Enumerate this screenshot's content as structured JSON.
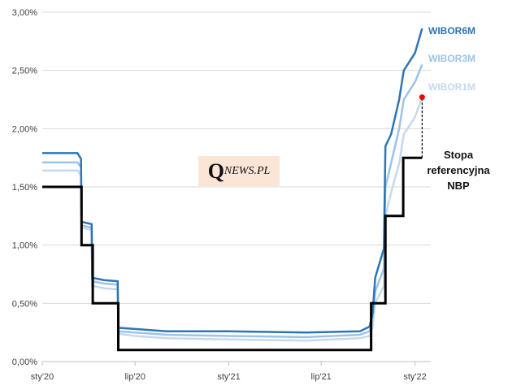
{
  "chart_data": {
    "type": "line",
    "title": "",
    "xlabel": "",
    "ylabel": "",
    "ylim": [
      0,
      3.0
    ],
    "yticks": [
      "0,00%",
      "0,50%",
      "1,00%",
      "1,50%",
      "2,00%",
      "2,50%",
      "3,00%"
    ],
    "xlim": [
      "2020-01-01",
      "2022-02-01"
    ],
    "xticks": [
      {
        "date": "2020-01-01",
        "label": "sty'20"
      },
      {
        "date": "2020-07-01",
        "label": "lip'20"
      },
      {
        "date": "2021-01-01",
        "label": "sty'21"
      },
      {
        "date": "2021-07-01",
        "label": "lip'21"
      },
      {
        "date": "2022-01-01",
        "label": "sty'22"
      }
    ],
    "grid": "horizontal",
    "legend": "inline-right",
    "series": [
      {
        "name": "WIBOR6M",
        "color": "#2e75b6",
        "points": [
          [
            "2020-01-01",
            1.79
          ],
          [
            "2020-03-10",
            1.79
          ],
          [
            "2020-03-17",
            1.74
          ],
          [
            "2020-03-18",
            1.2
          ],
          [
            "2020-04-07",
            1.18
          ],
          [
            "2020-04-08",
            0.72
          ],
          [
            "2020-05-01",
            0.7
          ],
          [
            "2020-05-28",
            0.69
          ],
          [
            "2020-05-29",
            0.29
          ],
          [
            "2020-07-01",
            0.28
          ],
          [
            "2020-09-01",
            0.26
          ],
          [
            "2021-01-01",
            0.26
          ],
          [
            "2021-06-01",
            0.25
          ],
          [
            "2021-09-15",
            0.26
          ],
          [
            "2021-10-04",
            0.3
          ],
          [
            "2021-10-10",
            0.42
          ],
          [
            "2021-10-15",
            0.72
          ],
          [
            "2021-11-01",
            0.97
          ],
          [
            "2021-11-04",
            1.85
          ],
          [
            "2021-11-15",
            1.95
          ],
          [
            "2021-12-01",
            2.25
          ],
          [
            "2021-12-10",
            2.5
          ],
          [
            "2022-01-01",
            2.65
          ],
          [
            "2022-01-15",
            2.86
          ]
        ]
      },
      {
        "name": "WIBOR3M",
        "color": "#9dc3e6",
        "points": [
          [
            "2020-01-01",
            1.71
          ],
          [
            "2020-03-10",
            1.71
          ],
          [
            "2020-03-17",
            1.67
          ],
          [
            "2020-03-18",
            1.17
          ],
          [
            "2020-04-07",
            1.15
          ],
          [
            "2020-04-08",
            0.69
          ],
          [
            "2020-05-01",
            0.67
          ],
          [
            "2020-05-28",
            0.66
          ],
          [
            "2020-05-29",
            0.26
          ],
          [
            "2020-07-01",
            0.25
          ],
          [
            "2020-09-01",
            0.23
          ],
          [
            "2021-01-01",
            0.22
          ],
          [
            "2021-06-01",
            0.21
          ],
          [
            "2021-09-15",
            0.23
          ],
          [
            "2021-10-04",
            0.26
          ],
          [
            "2021-10-10",
            0.38
          ],
          [
            "2021-10-15",
            0.6
          ],
          [
            "2021-11-01",
            0.8
          ],
          [
            "2021-11-04",
            1.5
          ],
          [
            "2021-11-15",
            1.7
          ],
          [
            "2021-12-01",
            2.0
          ],
          [
            "2021-12-10",
            2.25
          ],
          [
            "2022-01-01",
            2.4
          ],
          [
            "2022-01-15",
            2.55
          ]
        ]
      },
      {
        "name": "WIBOR1M",
        "color": "#c5d9ee",
        "points": [
          [
            "2020-01-01",
            1.64
          ],
          [
            "2020-03-10",
            1.64
          ],
          [
            "2020-03-17",
            1.6
          ],
          [
            "2020-03-18",
            1.15
          ],
          [
            "2020-04-07",
            1.13
          ],
          [
            "2020-04-08",
            0.65
          ],
          [
            "2020-05-01",
            0.63
          ],
          [
            "2020-05-28",
            0.62
          ],
          [
            "2020-05-29",
            0.24
          ],
          [
            "2020-07-01",
            0.22
          ],
          [
            "2020-09-01",
            0.2
          ],
          [
            "2021-01-01",
            0.19
          ],
          [
            "2021-06-01",
            0.18
          ],
          [
            "2021-09-15",
            0.2
          ],
          [
            "2021-10-04",
            0.22
          ],
          [
            "2021-10-10",
            0.3
          ],
          [
            "2021-10-15",
            0.5
          ],
          [
            "2021-11-01",
            0.65
          ],
          [
            "2021-11-04",
            1.25
          ],
          [
            "2021-11-15",
            1.45
          ],
          [
            "2021-12-01",
            1.7
          ],
          [
            "2021-12-10",
            1.95
          ],
          [
            "2022-01-01",
            2.1
          ],
          [
            "2022-01-15",
            2.27
          ]
        ]
      },
      {
        "name": "Stopa referencyjna NBP",
        "color": "#000000",
        "points": [
          [
            "2020-01-01",
            1.5
          ],
          [
            "2020-03-18",
            1.5
          ],
          [
            "2020-03-18",
            1.0
          ],
          [
            "2020-04-09",
            1.0
          ],
          [
            "2020-04-09",
            0.5
          ],
          [
            "2020-05-29",
            0.5
          ],
          [
            "2020-05-29",
            0.1
          ],
          [
            "2021-10-07",
            0.1
          ],
          [
            "2021-10-07",
            0.5
          ],
          [
            "2021-11-04",
            0.5
          ],
          [
            "2021-11-04",
            1.25
          ],
          [
            "2021-12-09",
            1.25
          ],
          [
            "2021-12-09",
            1.75
          ],
          [
            "2022-01-15",
            1.75
          ]
        ]
      }
    ],
    "highlight_point": {
      "date": "2022-01-15",
      "value": 2.27,
      "color": "#ff0000"
    },
    "legend_labels": {
      "wibor6m": "WIBOR6M",
      "wibor3m": "WIBOR3M",
      "wibor1m": "WIBOR1M",
      "stopa_line1": "Stopa",
      "stopa_line2": "referencyjna",
      "stopa_line3": "NBP"
    }
  },
  "watermark": {
    "q": "Q",
    "rest": "NEWS.PL"
  }
}
